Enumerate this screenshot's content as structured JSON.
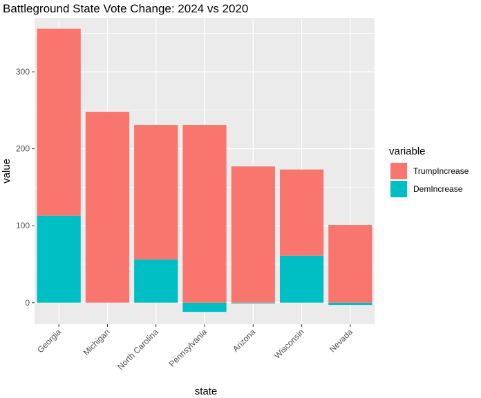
{
  "chart_data": {
    "type": "bar",
    "stacked": true,
    "title": "Battleground State Vote Change: 2024 vs 2020",
    "xlabel": "state",
    "ylabel": "value",
    "categories": [
      "Georgia",
      "Michigan",
      "North Carolina",
      "Pennsylvania",
      "Arizona",
      "Wisconsin",
      "Nevada"
    ],
    "series": [
      {
        "name": "TrumpIncrease",
        "values": [
          243,
          248,
          175,
          231,
          177,
          112,
          101
        ]
      },
      {
        "name": "DemIncrease",
        "values": [
          113,
          0,
          56,
          -12,
          -1,
          61,
          -3
        ]
      }
    ],
    "ylim": [
      -28,
      370
    ],
    "yticks": [
      0,
      100,
      200,
      300
    ],
    "grid": true,
    "legend": {
      "title": "variable",
      "position": "right"
    },
    "colors": {
      "TrumpIncrease": "#F8766D",
      "DemIncrease": "#00BFC4",
      "panel": "#EBEBEB",
      "grid": "#FFFFFF"
    }
  }
}
